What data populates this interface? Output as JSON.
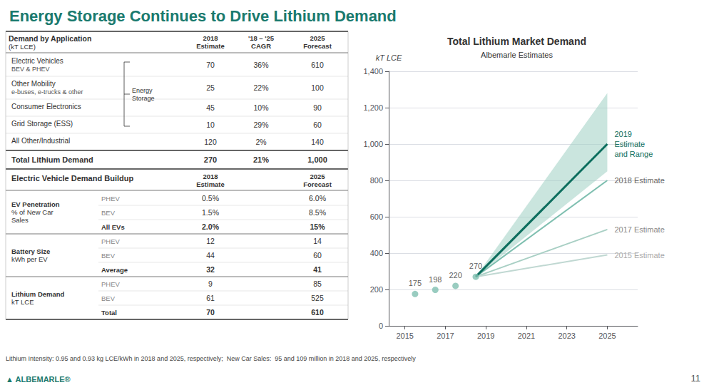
{
  "title": "Energy Storage Continues to Drive Lithium Demand",
  "title_color": "#1a7a6e",
  "tables": [
    {
      "header": [
        "Demand by Application",
        "(kT LCE)"
      ],
      "columns": [
        [
          "2018",
          "Estimate"
        ],
        [
          "'18 – '25",
          "CAGR"
        ],
        [
          "2025",
          "Forecast"
        ]
      ],
      "group_label": "Energy\nStorage",
      "rows": [
        {
          "label": "Electric Vehicles",
          "sublabel": "BEV & PHEV",
          "values": [
            "70",
            "36%",
            "610"
          ],
          "in_group": true
        },
        {
          "label": "Other Mobility",
          "sublabel": "e-buses, e-trucks & other",
          "values": [
            "25",
            "22%",
            "100"
          ],
          "in_group": true
        },
        {
          "label": "Consumer Electronics",
          "values": [
            "45",
            "10%",
            "90"
          ],
          "in_group": true
        },
        {
          "label": "Grid Storage (ESS)",
          "values": [
            "10",
            "29%",
            "60"
          ],
          "in_group": true
        },
        {
          "label": "All Other/Industrial",
          "values": [
            "120",
            "2%",
            "140"
          ],
          "in_group": false
        }
      ],
      "total": {
        "label": "Total Lithium Demand",
        "values": [
          "270",
          "21%",
          "1,000"
        ]
      }
    },
    {
      "title": "Electric Vehicle Demand Buildup",
      "columns": [
        [
          "2018",
          "Estimate"
        ],
        [
          "2025",
          "Forecast"
        ]
      ],
      "sections": [
        {
          "label": [
            "EV Penetration",
            "% of New Car",
            "Sales"
          ],
          "rows": [
            {
              "label": "PHEV",
              "values": [
                "0.5%",
                "6.0%"
              ]
            },
            {
              "label": "BEV",
              "values": [
                "1.5%",
                "8.5%"
              ]
            },
            {
              "label": "All EVs",
              "values": [
                "2.0%",
                "15%"
              ]
            }
          ]
        },
        {
          "label": [
            "Battery Size",
            "kWh per EV"
          ],
          "rows": [
            {
              "label": "PHEV",
              "values": [
                "12",
                "14"
              ]
            },
            {
              "label": "BEV",
              "values": [
                "44",
                "60"
              ]
            },
            {
              "label": "Average",
              "values": [
                "32",
                "41"
              ]
            }
          ]
        },
        {
          "label": [
            "Lithium Demand",
            "kT LCE"
          ],
          "rows": [
            {
              "label": "PHEV",
              "values": [
                "9",
                "85"
              ]
            },
            {
              "label": "BEV",
              "values": [
                "61",
                "525"
              ]
            },
            {
              "label": "Total",
              "values": [
                "70",
                "610"
              ]
            }
          ]
        }
      ]
    }
  ],
  "footer": "Lithium Intensity: 0.95 and 0.93 kg LCE/kWh in 2018 and 2025, respectively;  New Car Sales:  95 and 109 million in 2018 and 2025, respectively",
  "logo": "▲ ALBEMARLE®",
  "logo_color": "#1a7a6e",
  "page_number": "11",
  "chart_data": {
    "type": "line",
    "title": "Total Lithium Market Demand",
    "subtitle": "Albemarle Estimates",
    "ylabel": "kT LCE",
    "xlim": [
      2014.2,
      2026.5
    ],
    "ylim": [
      0,
      1400
    ],
    "xticks": [
      2015,
      2017,
      2019,
      2021,
      2023,
      2025
    ],
    "yticks": [
      0,
      200,
      400,
      600,
      800,
      {
        "value": 1000,
        "label": "1,000"
      },
      {
        "value": 1200,
        "label": "1,200"
      },
      {
        "value": 1400,
        "label": "1,400"
      }
    ],
    "grid": true,
    "series": [
      {
        "name": "2019\nEstimate\nand Range",
        "type": "band",
        "x": [
          2018.5,
          2025
        ],
        "values": [
          270,
          1000
        ],
        "upper": [
          270,
          1280
        ],
        "lower": [
          270,
          850
        ],
        "color": "#0d6e5e",
        "fill_color": "#9ecfc3",
        "annotation_color": "#0d6e5e"
      },
      {
        "name": "2018 Estimate",
        "type": "line",
        "x": [
          2018.5,
          2025
        ],
        "values": [
          270,
          800
        ],
        "color": "#7fbfb0",
        "annotation_color": "#666666"
      },
      {
        "name": "2017 Estimate",
        "type": "line",
        "x": [
          2018.5,
          2025
        ],
        "values": [
          270,
          530
        ],
        "color": "#a8cfc4",
        "annotation_color": "#888888"
      },
      {
        "name": "2015 Estimate",
        "type": "line",
        "x": [
          2018.5,
          2025
        ],
        "values": [
          270,
          390
        ],
        "color": "#c0d8d2",
        "annotation_color": "#aaaaaa"
      },
      {
        "type": "scatter",
        "x": [
          2015.5,
          2016.5,
          2017.5,
          2018.5
        ],
        "values": [
          175,
          198,
          220,
          270
        ],
        "color": "#7fbfb0",
        "data_labels": true
      }
    ]
  }
}
